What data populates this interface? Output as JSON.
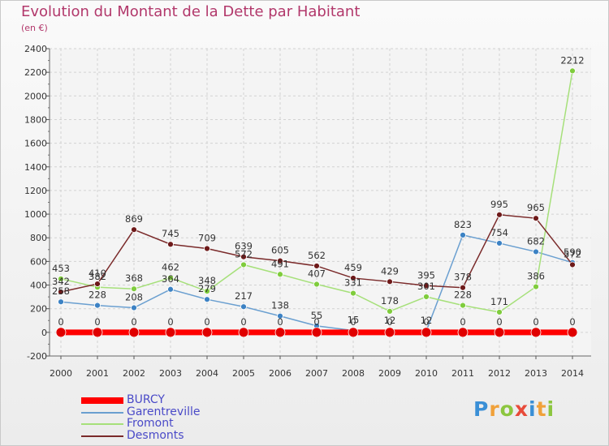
{
  "title": "Evolution du Montant de la Dette par Habitant",
  "subtitle": "(en €)",
  "logo": {
    "text": "Proxiti",
    "colors": [
      "#3a8fd6",
      "#f0a13a",
      "#8cc63f",
      "#e84b3a",
      "#3a8fd6",
      "#f0a13a",
      "#8cc63f"
    ]
  },
  "chart_data": {
    "type": "line",
    "title": "Evolution du Montant de la Dette par Habitant",
    "ylabel": "(en €)",
    "x": [
      "2000",
      "2001",
      "2002",
      "2003",
      "2004",
      "2005",
      "2006",
      "2007",
      "2008",
      "2009",
      "2010",
      "2011",
      "2012",
      "2013",
      "2014"
    ],
    "ylim": [
      -200,
      2400
    ],
    "yticks": [
      "-200",
      "0",
      "200",
      "400",
      "600",
      "800",
      "1000",
      "1200",
      "1400",
      "1600",
      "1800",
      "2000",
      "2200",
      "2400"
    ],
    "grid": true,
    "legend_position": "bottom-left",
    "series": [
      {
        "name": "BURCY",
        "color": "#ff0000",
        "point_color": "#e00000",
        "values": [
          0,
          0,
          0,
          0,
          0,
          0,
          0,
          0,
          0,
          0,
          0,
          0,
          0,
          0,
          0
        ],
        "labels": [
          "0",
          "0",
          "0",
          "0",
          "0",
          "0",
          "0",
          "0",
          "0",
          "0",
          "0",
          "0",
          "0",
          "0",
          "0"
        ]
      },
      {
        "name": "Garentreville",
        "color": "#6a9fd0",
        "point_color": "#3c82c4",
        "values": [
          258,
          228,
          208,
          364,
          279,
          217,
          138,
          55,
          15,
          12,
          12,
          823,
          754,
          682,
          590
        ],
        "labels": [
          "258",
          "228",
          "208",
          "364",
          "279",
          "217",
          "138",
          "55",
          "15",
          "12",
          "12",
          "823",
          "754",
          "682",
          "590"
        ]
      },
      {
        "name": "Fromont",
        "color": "#a6e07a",
        "point_color": "#7fcc3c",
        "values": [
          453,
          382,
          368,
          462,
          348,
          572,
          491,
          407,
          331,
          178,
          301,
          228,
          171,
          386,
          2212
        ],
        "labels": [
          "453",
          "382",
          "368",
          "462",
          "348",
          "572",
          "491",
          "407",
          "331",
          "178",
          "301",
          "228",
          "171",
          "386",
          "2212"
        ]
      },
      {
        "name": "Desmonts",
        "color": "#7a2a2a",
        "point_color": "#6e1a1a",
        "values": [
          342,
          410,
          869,
          745,
          709,
          639,
          605,
          562,
          459,
          429,
          395,
          378,
          995,
          965,
          572
        ],
        "labels": [
          "342",
          "410",
          "869",
          "745",
          "709",
          "639",
          "605",
          "562",
          "459",
          "429",
          "395",
          "378",
          "995",
          "965",
          "572"
        ]
      }
    ]
  }
}
